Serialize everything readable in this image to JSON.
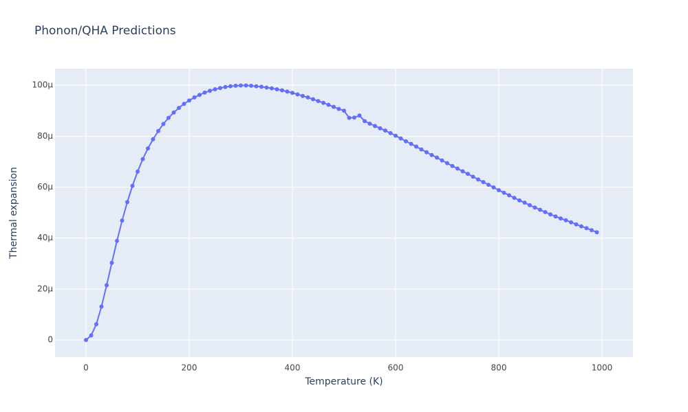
{
  "chart_data": {
    "type": "line",
    "title": "Phonon/QHA Predictions",
    "x_label": "Temperature (K)",
    "y_label": "Thermal expansion",
    "color": "#636efa",
    "grid": true,
    "x": [
      0,
      10,
      20,
      30,
      40,
      50,
      60,
      70,
      80,
      90,
      100,
      110,
      120,
      130,
      140,
      150,
      160,
      170,
      180,
      190,
      200,
      210,
      220,
      230,
      240,
      250,
      260,
      270,
      280,
      290,
      300,
      310,
      320,
      330,
      340,
      350,
      360,
      370,
      380,
      390,
      400,
      410,
      420,
      430,
      440,
      450,
      460,
      470,
      480,
      490,
      500,
      510,
      520,
      530,
      540,
      550,
      560,
      570,
      580,
      590,
      600,
      610,
      620,
      630,
      640,
      650,
      660,
      670,
      680,
      690,
      700,
      710,
      720,
      730,
      740,
      750,
      760,
      770,
      780,
      790,
      800,
      810,
      820,
      830,
      840,
      850,
      860,
      870,
      880,
      890,
      900,
      910,
      920,
      930,
      940,
      950,
      960,
      970,
      980,
      990
    ],
    "values": [
      0,
      1.8e-06,
      6.2e-06,
      1.31e-05,
      2.15e-05,
      3.03e-05,
      3.89e-05,
      4.69e-05,
      5.41e-05,
      6.05e-05,
      6.61e-05,
      7.1e-05,
      7.52e-05,
      7.88e-05,
      8.2e-05,
      8.48e-05,
      8.72e-05,
      8.93e-05,
      9.11e-05,
      9.27e-05,
      9.4e-05,
      9.52e-05,
      9.62e-05,
      9.71e-05,
      9.78e-05,
      9.84e-05,
      9.89e-05,
      9.93e-05,
      9.96e-05,
      9.98e-05,
      9.99e-05,
      9.99e-05,
      9.98e-05,
      9.96e-05,
      9.94e-05,
      9.91e-05,
      9.88e-05,
      9.84e-05,
      9.8e-05,
      9.75e-05,
      9.7e-05,
      9.64e-05,
      9.58e-05,
      9.52e-05,
      9.45e-05,
      9.38e-05,
      9.31e-05,
      9.23e-05,
      9.15e-05,
      9.07e-05,
      9e-05,
      8.72e-05,
      8.73e-05,
      8.81e-05,
      8.59e-05,
      8.49e-05,
      8.4e-05,
      8.31e-05,
      8.22e-05,
      8.12e-05,
      8.02e-05,
      7.91e-05,
      7.8e-05,
      7.7e-05,
      7.59e-05,
      7.48e-05,
      7.37e-05,
      7.26e-05,
      7.16e-05,
      7.05e-05,
      6.94e-05,
      6.83e-05,
      6.73e-05,
      6.62e-05,
      6.52e-05,
      6.41e-05,
      6.3e-05,
      6.2e-05,
      6.09e-05,
      5.99e-05,
      5.88e-05,
      5.78e-05,
      5.68e-05,
      5.58e-05,
      5.48e-05,
      5.39e-05,
      5.29e-05,
      5.2e-05,
      5.11e-05,
      5.02e-05,
      4.93e-05,
      4.85e-05,
      4.77e-05,
      4.7e-05,
      4.62e-05,
      4.54e-05,
      4.46e-05,
      4.39e-05,
      4.31e-05,
      4.23e-05
    ],
    "xlim": [
      -60,
      1060
    ],
    "xticks": [
      0,
      200,
      400,
      600,
      800,
      1000
    ],
    "ylim": [
      -6.7e-06,
      0.0001065
    ],
    "yticks": [
      0,
      {
        "value": 2e-05,
        "label": "20µ"
      },
      {
        "value": 4e-05,
        "label": "40µ"
      },
      {
        "value": 6e-05,
        "label": "60µ"
      },
      {
        "value": 8e-05,
        "label": "80µ"
      },
      {
        "value": 0.0001,
        "label": "100µ"
      }
    ]
  }
}
